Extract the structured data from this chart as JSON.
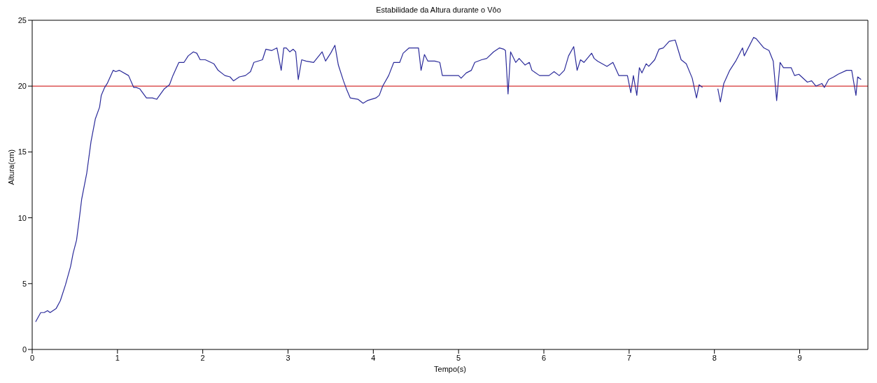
{
  "chart_data": {
    "type": "line",
    "title": "Estabilidade da Altura durante o Vôo",
    "xlabel": "Tempo(s)",
    "ylabel": "Altura(cm)",
    "x": [
      0.04,
      0.1,
      0.14,
      0.18,
      0.21,
      0.28,
      0.33,
      0.39,
      0.45,
      0.48,
      0.52,
      0.55,
      0.58,
      0.64,
      0.69,
      0.74,
      0.79,
      0.81,
      0.85,
      0.88,
      0.95,
      0.98,
      1.02,
      1.13,
      1.19,
      1.22,
      1.26,
      1.34,
      1.41,
      1.46,
      1.55,
      1.61,
      1.65,
      1.72,
      1.78,
      1.83,
      1.89,
      1.93,
      1.97,
      2.03,
      2.13,
      2.18,
      2.26,
      2.32,
      2.36,
      2.43,
      2.5,
      2.56,
      2.6,
      2.7,
      2.74,
      2.81,
      2.87,
      2.92,
      2.95,
      2.98,
      3.02,
      3.06,
      3.09,
      3.12,
      3.16,
      3.21,
      3.3,
      3.4,
      3.44,
      3.5,
      3.55,
      3.59,
      3.65,
      3.69,
      3.73,
      3.82,
      3.88,
      3.93,
      4.03,
      4.07,
      4.11,
      4.18,
      4.24,
      4.31,
      4.35,
      4.42,
      4.53,
      4.56,
      4.6,
      4.64,
      4.72,
      4.78,
      4.81,
      4.87,
      4.92,
      5.0,
      5.03,
      5.09,
      5.15,
      5.19,
      5.27,
      5.33,
      5.41,
      5.48,
      5.53,
      5.55,
      5.58,
      5.61,
      5.67,
      5.71,
      5.78,
      5.83,
      5.86,
      5.95,
      6.06,
      6.12,
      6.18,
      6.24,
      6.29,
      6.35,
      6.39,
      6.43,
      6.47,
      6.56,
      6.59,
      6.63,
      6.74,
      6.81,
      6.88,
      6.98,
      7.02,
      7.05,
      7.09,
      7.12,
      7.15,
      7.2,
      7.23,
      7.3,
      7.35,
      7.4,
      7.47,
      7.54,
      7.61,
      7.67,
      7.74,
      7.79,
      7.82,
      7.86,
      7.95,
      8.04,
      8.07,
      8.11,
      8.18,
      8.25,
      8.33,
      8.35,
      8.46,
      8.49,
      8.58,
      8.64,
      8.69,
      8.73,
      8.77,
      8.81,
      8.9,
      8.94,
      8.99,
      9.09,
      9.14,
      9.19,
      9.26,
      9.29,
      9.34,
      9.4,
      9.45,
      9.55,
      9.61,
      9.66,
      9.68,
      9.72
    ],
    "series": [
      {
        "color": "#2b2b9a",
        "values": [
          2.1,
          2.8,
          2.8,
          2.95,
          2.8,
          3.1,
          3.7,
          4.9,
          6.3,
          7.3,
          8.3,
          9.8,
          11.4,
          13.4,
          15.8,
          17.5,
          18.4,
          19.3,
          19.9,
          20.2,
          21.2,
          21.1,
          21.2,
          20.8,
          19.9,
          19.9,
          19.8,
          19.1,
          19.1,
          19.0,
          19.8,
          20.1,
          20.8,
          21.8,
          21.8,
          22.3,
          22.6,
          22.5,
          22.0,
          22.0,
          21.7,
          21.2,
          20.8,
          20.7,
          20.4,
          20.7,
          20.8,
          21.1,
          21.8,
          22.0,
          22.8,
          22.7,
          22.9,
          21.2,
          22.9,
          22.9,
          22.6,
          22.8,
          22.6,
          20.5,
          22.0,
          21.9,
          21.8,
          22.6,
          21.9,
          22.5,
          23.1,
          21.6,
          20.4,
          19.7,
          19.1,
          19.0,
          18.7,
          18.9,
          19.1,
          19.3,
          20.0,
          20.8,
          21.8,
          21.8,
          22.5,
          22.9,
          22.9,
          21.2,
          22.4,
          21.9,
          21.9,
          21.8,
          20.8,
          20.8,
          20.8,
          20.8,
          20.6,
          21.0,
          21.2,
          21.8,
          22.0,
          22.1,
          22.6,
          22.9,
          22.8,
          22.7,
          19.4,
          22.6,
          21.8,
          22.1,
          21.6,
          21.8,
          21.2,
          20.8,
          20.8,
          21.1,
          20.8,
          21.2,
          22.3,
          23.0,
          21.2,
          22.0,
          21.8,
          22.5,
          22.1,
          21.9,
          21.5,
          21.8,
          20.8,
          20.8,
          19.5,
          20.8,
          19.3,
          21.4,
          21.0,
          21.7,
          21.5,
          22.0,
          22.8,
          22.9,
          23.4,
          23.5,
          22.0,
          21.7,
          20.6,
          19.1,
          20.1,
          19.9,
          null,
          19.8,
          18.8,
          20.2,
          21.2,
          21.9,
          22.9,
          22.3,
          23.7,
          23.6,
          22.9,
          22.7,
          21.9,
          18.9,
          21.8,
          21.4,
          21.4,
          20.8,
          20.9,
          20.3,
          20.4,
          20.0,
          20.2,
          19.9,
          20.5,
          20.7,
          20.9,
          21.2,
          21.2,
          19.3,
          20.7,
          20.5
        ]
      }
    ],
    "xlim": [
      0,
      9.8
    ],
    "xticks": [
      0,
      1,
      2,
      3,
      4,
      5,
      6,
      7,
      8,
      9
    ],
    "ylim": [
      0,
      25
    ],
    "yticks": [
      0,
      5,
      10,
      15,
      20,
      25
    ],
    "ref_lines": [
      {
        "axis": "y",
        "value": 20,
        "color": "#cc0000"
      }
    ],
    "grid": false,
    "legend": false,
    "marker": "none",
    "line_style": "solid"
  }
}
